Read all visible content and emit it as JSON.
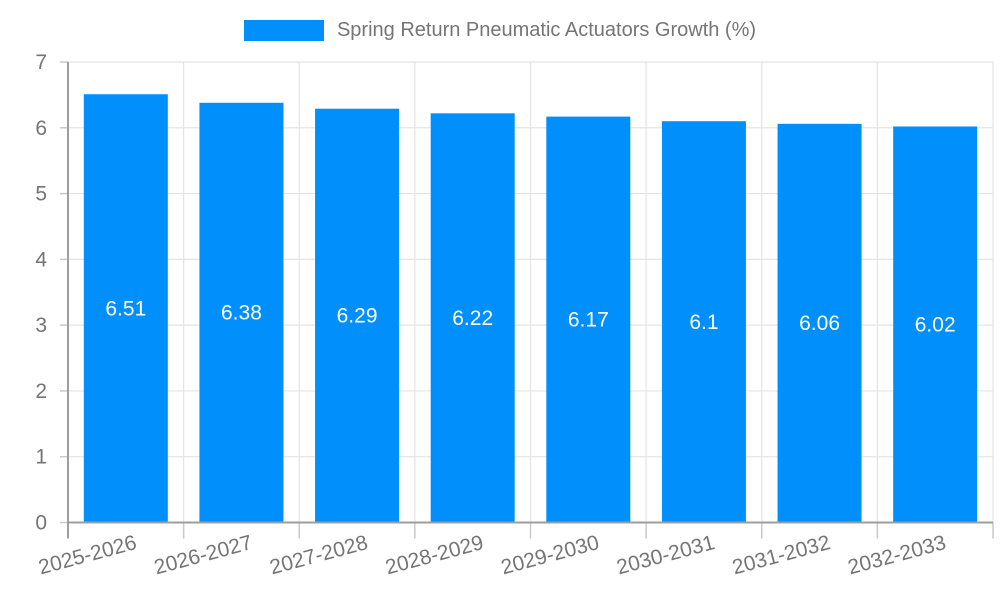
{
  "chart_data": {
    "type": "bar",
    "title": "Spring Return Pneumatic Actuators Growth (%)",
    "legend_position": "top",
    "categories": [
      "2025-2026",
      "2026-2027",
      "2027-2028",
      "2028-2029",
      "2029-2030",
      "2030-2031",
      "2031-2032",
      "2032-2033"
    ],
    "values": [
      6.51,
      6.38,
      6.29,
      6.22,
      6.17,
      6.1,
      6.06,
      6.02
    ],
    "value_labels": [
      "6.51",
      "6.38",
      "6.29",
      "6.22",
      "6.17",
      "6.1",
      "6.06",
      "6.02"
    ],
    "xlabel": "",
    "ylabel": "",
    "ylim": [
      0,
      7
    ],
    "yticks": [
      0,
      1,
      2,
      3,
      4,
      5,
      6,
      7
    ],
    "grid": true,
    "colors": {
      "bar": "#008FFB",
      "bar_label": "#ffffff",
      "axis_label": "#757575",
      "legend_text": "#757575",
      "gridline": "#e4e4e4",
      "tick": "#c9c9c9",
      "axis_line": "#9e9e9e",
      "background": "#ffffff"
    }
  }
}
